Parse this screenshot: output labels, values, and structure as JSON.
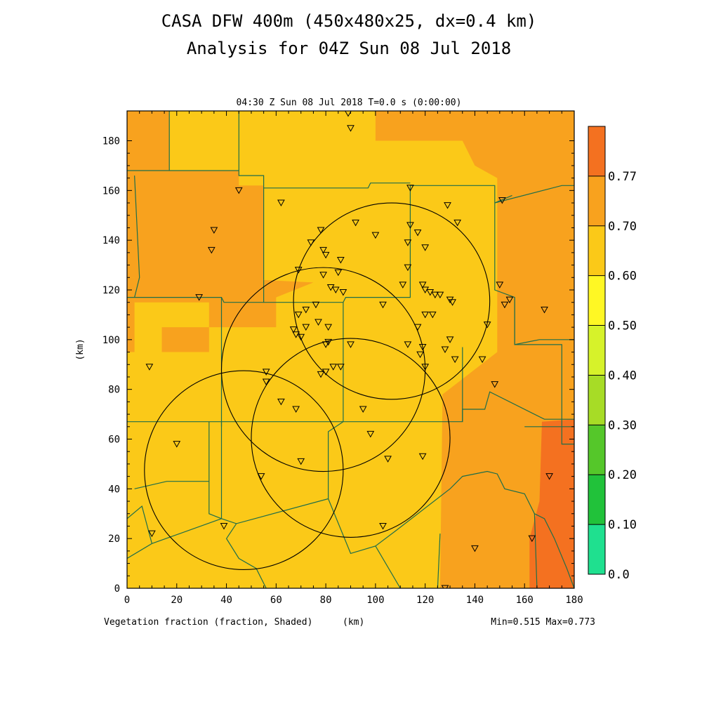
{
  "header": {
    "title_line1": "CASA DFW 400m (450x480x25, dx=0.4 km)",
    "title_line2": "Analysis for 04Z Sun 08 Jul 2018",
    "subtitle": "04:30 Z Sun 08 Jul 2018    T=0.0 s (0:00:00)"
  },
  "footer": {
    "left": "Vegetation fraction (fraction, Shaded)",
    "xunit": "(km)",
    "minmax": "Min=0.515 Max=0.773"
  },
  "colors": {
    "c050": "#fbc918",
    "c060": "#f8a21e",
    "c070": "#f47120",
    "county_line": "#1f6e4a",
    "range_ring": "#000000"
  },
  "chart_data": {
    "type": "heatmap",
    "xlabel": "(km)",
    "ylabel": "(km)",
    "xlim": [
      0,
      180
    ],
    "ylim": [
      0,
      192
    ],
    "xticks": [
      0,
      20,
      40,
      60,
      80,
      100,
      120,
      140,
      160,
      180
    ],
    "yticks": [
      0,
      20,
      40,
      60,
      80,
      100,
      120,
      140,
      160,
      180
    ],
    "field": "Vegetation fraction",
    "units": "fraction",
    "min": 0.515,
    "max": 0.773,
    "colorbar": {
      "labels": [
        "0.0",
        "0.10",
        "0.20",
        "0.30",
        "0.40",
        "0.50",
        "0.60",
        "0.70",
        "0.77"
      ],
      "colors": [
        "#1fe08f",
        "#21c23a",
        "#55c72a",
        "#a7dc26",
        "#d6f22a",
        "#fff724",
        "#fbc918",
        "#f8a21e",
        "#f47120"
      ]
    },
    "regions": [
      {
        "level": "0.60-0.70",
        "color_key": "c060",
        "polygon": [
          [
            0,
            192
          ],
          [
            17,
            192
          ],
          [
            17,
            168
          ],
          [
            45,
            168
          ],
          [
            45,
            162
          ],
          [
            55,
            162
          ],
          [
            55,
            124
          ],
          [
            75,
            123
          ],
          [
            55,
            115
          ],
          [
            3,
            115
          ],
          [
            3,
            125
          ],
          [
            0,
            125
          ]
        ]
      },
      {
        "level": "0.60-0.70",
        "color_key": "c060",
        "polygon": [
          [
            17,
            192
          ],
          [
            100,
            192
          ],
          [
            100,
            180
          ],
          [
            135,
            180
          ],
          [
            140,
            170
          ],
          [
            149,
            165
          ],
          [
            149,
            95
          ],
          [
            127,
            78
          ],
          [
            126,
            0
          ],
          [
            180,
            0
          ],
          [
            180,
            192
          ]
        ]
      },
      {
        "level": "0.60-0.70",
        "color_key": "c060",
        "polygon": [
          [
            33,
            105
          ],
          [
            60,
            105
          ],
          [
            60,
            120
          ],
          [
            33,
            120
          ]
        ]
      },
      {
        "level": "0.60-0.70",
        "color_key": "c060",
        "polygon": [
          [
            14,
            95
          ],
          [
            33,
            95
          ],
          [
            33,
            105
          ],
          [
            14,
            105
          ]
        ]
      },
      {
        "level": "0.60-0.70",
        "color_key": "c060",
        "polygon": [
          [
            0,
            125
          ],
          [
            3,
            125
          ],
          [
            3,
            95
          ],
          [
            0,
            95
          ]
        ]
      },
      {
        "level": "0.70-0.77",
        "color_key": "c070",
        "polygon": [
          [
            166,
            0
          ],
          [
            180,
            0
          ],
          [
            180,
            68
          ],
          [
            167,
            67
          ],
          [
            166,
            35
          ],
          [
            162,
            20
          ],
          [
            162,
            0
          ]
        ]
      }
    ],
    "range_rings": [
      {
        "center": [
          106.5,
          115.5
        ],
        "radius": 39.5
      },
      {
        "center": [
          79,
          88
        ],
        "radius": 41
      },
      {
        "center": [
          90,
          60.5
        ],
        "radius": 40
      },
      {
        "center": [
          47,
          47.5
        ],
        "radius": 40
      }
    ],
    "stations": [
      [
        89,
        191
      ],
      [
        90,
        185
      ],
      [
        45,
        160
      ],
      [
        62,
        155
      ],
      [
        114,
        161
      ],
      [
        129,
        154
      ],
      [
        133,
        147
      ],
      [
        35,
        144
      ],
      [
        34,
        136
      ],
      [
        78,
        144
      ],
      [
        92,
        147
      ],
      [
        100,
        142
      ],
      [
        114,
        146
      ],
      [
        117,
        143
      ],
      [
        74,
        139
      ],
      [
        113,
        139
      ],
      [
        120,
        137
      ],
      [
        79,
        136
      ],
      [
        80,
        134
      ],
      [
        86,
        132
      ],
      [
        69,
        128
      ],
      [
        85,
        127
      ],
      [
        79,
        126
      ],
      [
        113,
        129
      ],
      [
        151,
        156
      ],
      [
        82,
        121
      ],
      [
        84,
        120
      ],
      [
        87,
        119
      ],
      [
        111,
        122
      ],
      [
        119,
        122
      ],
      [
        120,
        120
      ],
      [
        122,
        119
      ],
      [
        124,
        118
      ],
      [
        126,
        118
      ],
      [
        130,
        116
      ],
      [
        131,
        115
      ],
      [
        150,
        122
      ],
      [
        154,
        116
      ],
      [
        152,
        114
      ],
      [
        29,
        117
      ],
      [
        76,
        114
      ],
      [
        72,
        112
      ],
      [
        69,
        110
      ],
      [
        77,
        107
      ],
      [
        81,
        105
      ],
      [
        72,
        105
      ],
      [
        67,
        104
      ],
      [
        68,
        102
      ],
      [
        70,
        101
      ],
      [
        103,
        114
      ],
      [
        117,
        105
      ],
      [
        120,
        110
      ],
      [
        123,
        110
      ],
      [
        145,
        106
      ],
      [
        168,
        112
      ],
      [
        81,
        99
      ],
      [
        80,
        98
      ],
      [
        113,
        98
      ],
      [
        119,
        97
      ],
      [
        90,
        98
      ],
      [
        118,
        94
      ],
      [
        130,
        100
      ],
      [
        128,
        96
      ],
      [
        132,
        92
      ],
      [
        9,
        89
      ],
      [
        56,
        87
      ],
      [
        78,
        86
      ],
      [
        80,
        87
      ],
      [
        83,
        89
      ],
      [
        86,
        89
      ],
      [
        143,
        92
      ],
      [
        120,
        89
      ],
      [
        56,
        83
      ],
      [
        148,
        82
      ],
      [
        62,
        75
      ],
      [
        68,
        72
      ],
      [
        95,
        72
      ],
      [
        98,
        62
      ],
      [
        20,
        58
      ],
      [
        119,
        53
      ],
      [
        105,
        52
      ],
      [
        70,
        51
      ],
      [
        54,
        45
      ],
      [
        170,
        45
      ],
      [
        39,
        25
      ],
      [
        10,
        22
      ],
      [
        103,
        25
      ],
      [
        163,
        20
      ],
      [
        140,
        16
      ],
      [
        128,
        0
      ]
    ]
  }
}
